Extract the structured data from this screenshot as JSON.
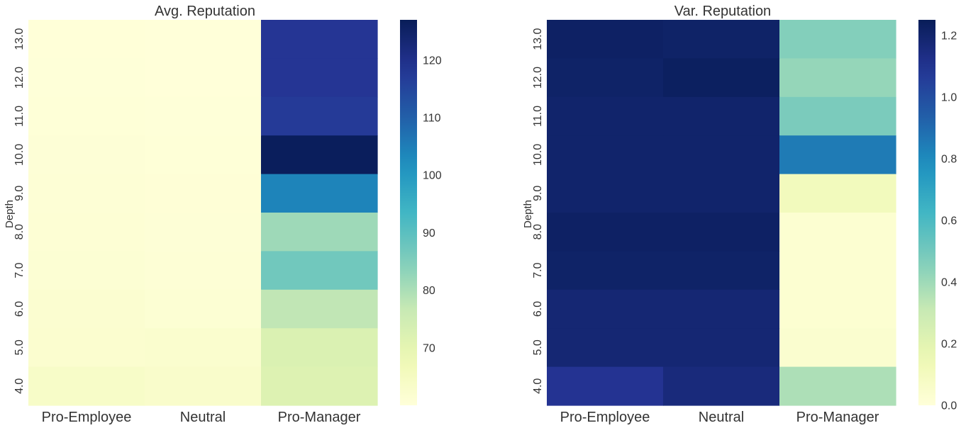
{
  "chart_data": [
    {
      "type": "heatmap",
      "title": "Avg. Reputation",
      "xlabel": "",
      "ylabel": "Depth",
      "categories": [
        "Pro-Employee",
        "Neutral",
        "Pro-Manager"
      ],
      "rows": [
        "13.0",
        "12.0",
        "11.0",
        "10.0",
        "9.0",
        "8.0",
        "7.0",
        "6.0",
        "5.0",
        "4.0"
      ],
      "values": [
        [
          60.2,
          60.0,
          118.5
        ],
        [
          60.3,
          60.1,
          118.5
        ],
        [
          60.5,
          60.3,
          117.5
        ],
        [
          60.7,
          60.5,
          126.5
        ],
        [
          60.8,
          60.6,
          104.0
        ],
        [
          61.0,
          60.7,
          81.5
        ],
        [
          61.2,
          60.9,
          87.0
        ],
        [
          61.8,
          61.3,
          77.5
        ],
        [
          62.0,
          62.2,
          72.5
        ],
        [
          63.5,
          63.0,
          72.0
        ]
      ],
      "colorbar": {
        "min": 60,
        "max": 127,
        "ticks": [
          70,
          80,
          90,
          100,
          110,
          120
        ],
        "tick_labels": [
          "70",
          "80",
          "90",
          "100",
          "110",
          "120"
        ]
      },
      "colormap": "YlGnBu"
    },
    {
      "type": "heatmap",
      "title": "Var. Reputation",
      "xlabel": "",
      "ylabel": "Depth",
      "categories": [
        "Pro-Employee",
        "Neutral",
        "Pro-Manager"
      ],
      "rows": [
        "13.0",
        "12.0",
        "11.0",
        "10.0",
        "9.0",
        "8.0",
        "7.0",
        "6.0",
        "5.0",
        "4.0"
      ],
      "values": [
        [
          1.22,
          1.21,
          0.46
        ],
        [
          1.21,
          1.23,
          0.42
        ],
        [
          1.2,
          1.2,
          0.48
        ],
        [
          1.2,
          1.2,
          0.85
        ],
        [
          1.2,
          1.2,
          0.11
        ],
        [
          1.22,
          1.22,
          0.03
        ],
        [
          1.21,
          1.21,
          0.03
        ],
        [
          1.18,
          1.18,
          0.03
        ],
        [
          1.18,
          1.18,
          0.04
        ],
        [
          1.1,
          1.16,
          0.37
        ]
      ],
      "colorbar": {
        "min": 0.0,
        "max": 1.25,
        "ticks": [
          0.0,
          0.2,
          0.4,
          0.6,
          0.8,
          1.0,
          1.2
        ],
        "tick_labels": [
          "0.0",
          "0.2",
          "0.4",
          "0.6",
          "0.8",
          "1.0",
          "1.2"
        ]
      },
      "colormap": "YlGnBu"
    }
  ]
}
